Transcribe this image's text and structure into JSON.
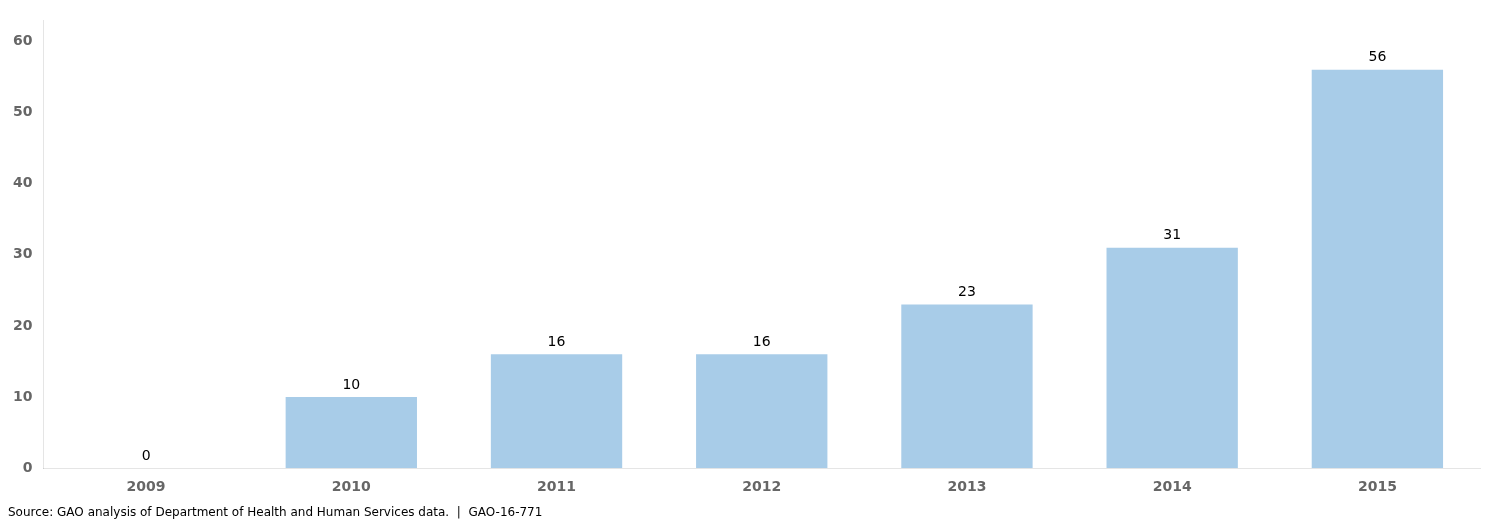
{
  "chart_data": {
    "type": "bar",
    "categories": [
      "2009",
      "2010",
      "2011",
      "2012",
      "2013",
      "2014",
      "2015"
    ],
    "values": [
      0,
      10,
      16,
      16,
      23,
      31,
      56
    ],
    "color": "#a8cce8",
    "ylim": [
      0,
      63
    ],
    "yticks": [
      0,
      10,
      20,
      30,
      40,
      50,
      60
    ],
    "grid": false,
    "data_labels": true,
    "annotations": [
      "Source: GAO analysis of Department of Health and Human Services data.  |  GAO-16-771"
    ]
  }
}
